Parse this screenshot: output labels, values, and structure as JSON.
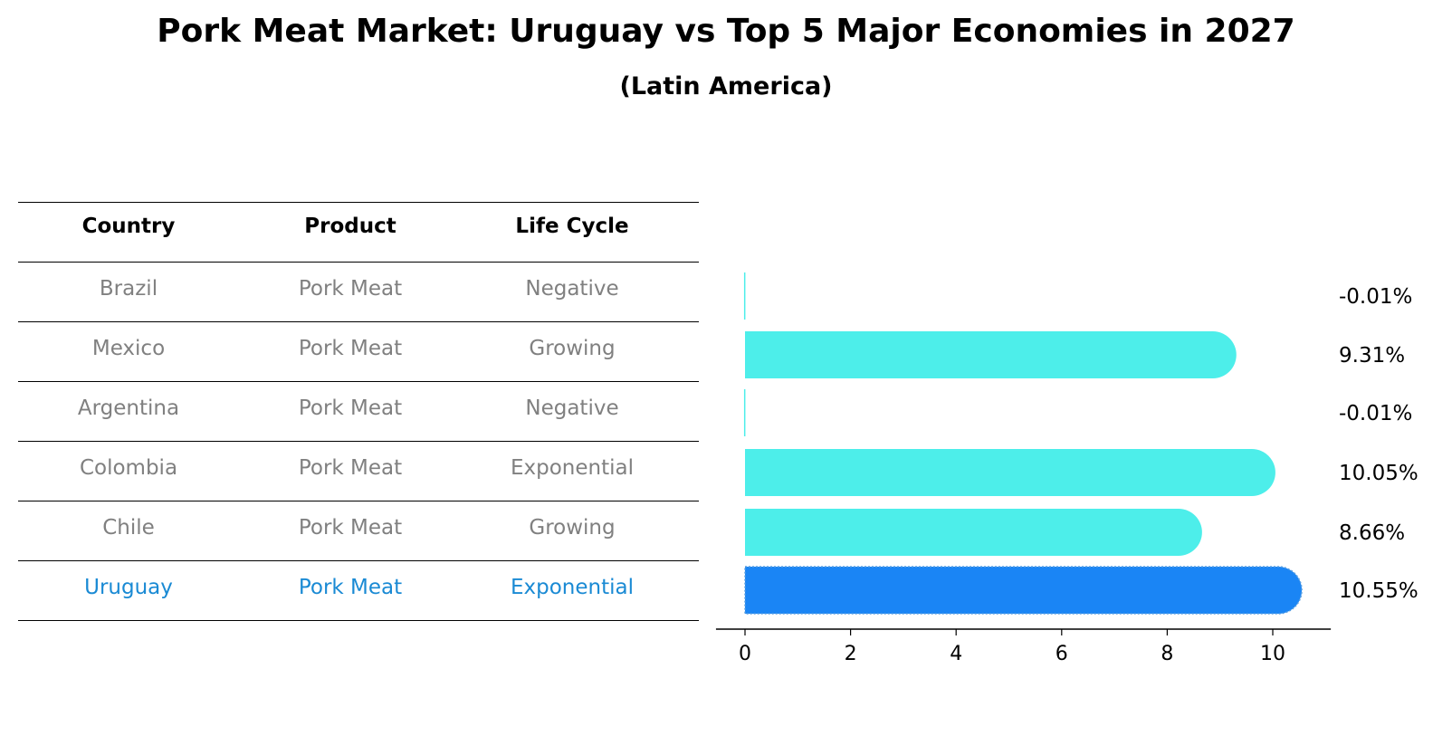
{
  "chart_data": {
    "type": "bar",
    "title": "Pork Meat Market: Uruguay vs Top 5 Major Economies in 2027",
    "subtitle": "(Latin America)",
    "table": {
      "columns": [
        "Country",
        "Product",
        "Life Cycle"
      ],
      "rows": [
        {
          "country": "Brazil",
          "product": "Pork Meat",
          "life_cycle": "Negative"
        },
        {
          "country": "Mexico",
          "product": "Pork Meat",
          "life_cycle": "Growing"
        },
        {
          "country": "Argentina",
          "product": "Pork Meat",
          "life_cycle": "Negative"
        },
        {
          "country": "Colombia",
          "product": "Pork Meat",
          "life_cycle": "Exponential"
        },
        {
          "country": "Chile",
          "product": "Pork Meat",
          "life_cycle": "Growing"
        },
        {
          "country": "Uruguay",
          "product": "Pork Meat",
          "life_cycle": "Exponential"
        }
      ],
      "highlight_row": 5
    },
    "categories": [
      "Brazil",
      "Mexico",
      "Argentina",
      "Colombia",
      "Chile",
      "Uruguay"
    ],
    "values": [
      -0.01,
      9.31,
      -0.01,
      10.05,
      8.66,
      10.55
    ],
    "value_labels": [
      "-0.01%",
      "9.31%",
      "-0.01%",
      "10.05%",
      "8.66%",
      "10.55%"
    ],
    "xlim": [
      -0.55,
      11.1
    ],
    "x_ticks": [
      0,
      2,
      4,
      6,
      8,
      10
    ],
    "grid": false,
    "colors": {
      "bar": "#4deeea",
      "highlight_bar": "#1a85f5",
      "highlight_text": "#1a8ad4",
      "muted_text": "#808080"
    }
  }
}
